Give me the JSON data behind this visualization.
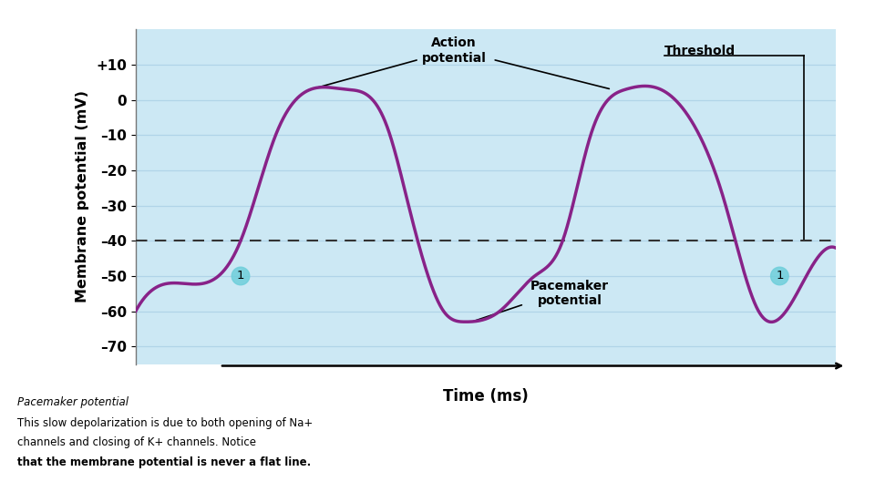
{
  "ylabel": "Membrane potential (mV)",
  "xlabel": "Time (ms)",
  "yticks": [
    10,
    0,
    -10,
    -20,
    -30,
    -40,
    -50,
    -60,
    -70
  ],
  "ytick_labels": [
    "+10",
    "0",
    "–10",
    "–20",
    "–30",
    "–40",
    "–50",
    "–60",
    "–70"
  ],
  "ylim": [
    -75,
    20
  ],
  "xlim": [
    0,
    10
  ],
  "threshold_y": -40,
  "bg_color": "#cce8f4",
  "curve_color": "#882288",
  "curve_linewidth": 2.5,
  "dashed_color": "#333333",
  "grid_color": "#b0d4e8",
  "circle_color": "#6fcfdb",
  "caption_line1": "Pacemaker potential",
  "caption_line2": "This slow depolarization is due to both opening of Na+",
  "caption_line3": "channels and closing of K+ channels. Notice",
  "caption_line4": "that the membrane potential is never a flat line.",
  "keypoints_x": [
    0.0,
    0.6,
    1.5,
    2.0,
    2.5,
    3.0,
    3.6,
    3.9,
    4.4,
    4.7,
    5.2,
    5.7,
    6.1,
    6.5,
    7.0,
    7.5,
    8.0,
    8.4,
    8.9,
    9.2,
    9.7,
    10.0
  ],
  "keypoints_y": [
    -60.0,
    -52.0,
    -40.0,
    -10.0,
    3.0,
    3.0,
    -8.0,
    -30.0,
    -60.0,
    -63.0,
    -60.0,
    -50.0,
    -40.0,
    -10.0,
    3.0,
    3.0,
    -8.0,
    -28.0,
    -60.0,
    -62.0,
    -46.0,
    -42.0
  ]
}
